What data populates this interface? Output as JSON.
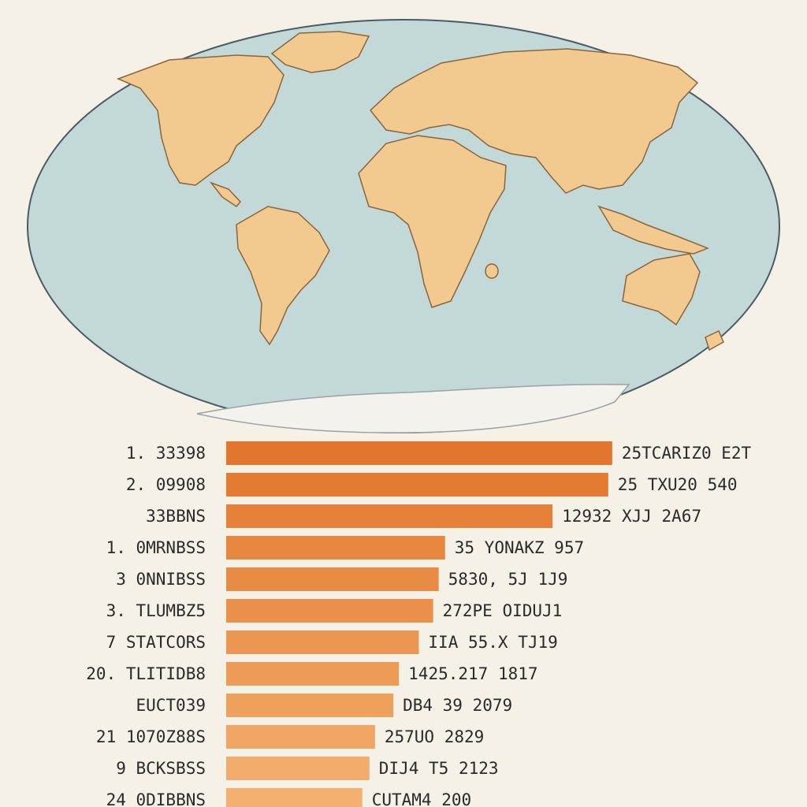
{
  "colors": {
    "ocean": "#c2d9d7",
    "ocean_outline": "#4a5a66",
    "land": "#f2c98e",
    "land_outline": "#8a6540",
    "ice": "#f4f2ec",
    "bar_dark": "#e2762c",
    "bar_light": "#f3b070",
    "background": "#f6f1e6"
  },
  "chart_data": {
    "type": "bar",
    "orientation": "horizontal",
    "categories": [
      "1. 33398",
      "2. 09908",
      "33BBNS",
      "1. 0MRNBSS",
      "3 0NNIBSS",
      "3. TLUMBZ5",
      "7 STATCORS",
      "20. TLITIDB8",
      "EUCT039",
      "21 1070Z88S",
      "9 BCKSBSS",
      "24 0DIBBNS"
    ],
    "values": [
      485,
      480,
      410,
      275,
      267,
      260,
      242,
      217,
      210,
      187,
      180,
      171
    ],
    "value_labels": [
      "25TCARIZ0 E2T",
      "25 TXU20 540",
      "12932 XJJ 2A67",
      "35 YONAKZ 957",
      "5830, 5J 1J9",
      "272PE OIDUJ1",
      "IIA 55.X TJ19",
      "1425.217 1817",
      "DB4 39 2079",
      "257UO 2829",
      "DIJ4 T5 2123",
      "CUTAM4 200"
    ],
    "xlim": [
      0,
      500
    ],
    "grid": false,
    "legend": "none"
  }
}
